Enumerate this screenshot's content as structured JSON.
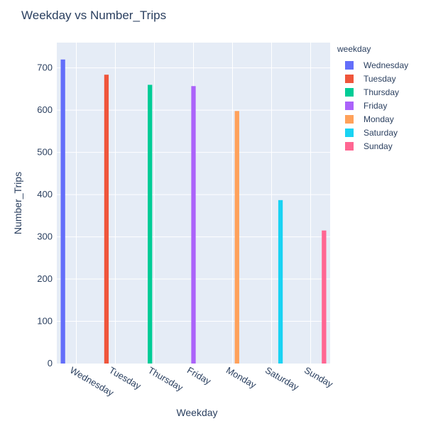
{
  "chart_data": {
    "type": "bar",
    "title": "Weekday vs Number_Trips",
    "xlabel": "Weekday",
    "ylabel": "Number_Trips",
    "categories": [
      "Wednesday",
      "Tuesday",
      "Thursday",
      "Friday",
      "Monday",
      "Saturday",
      "Sunday"
    ],
    "ylim": [
      0,
      760
    ],
    "yticks": [
      0,
      100,
      200,
      300,
      400,
      500,
      600,
      700
    ],
    "grid": true,
    "legend_title": "weekday",
    "legend_position": "right",
    "series": [
      {
        "name": "Wednesday",
        "color": "#636efa",
        "values": [
          720,
          null,
          null,
          null,
          null,
          null,
          null
        ]
      },
      {
        "name": "Tuesday",
        "color": "#ef553b",
        "values": [
          null,
          684,
          null,
          null,
          null,
          null,
          null
        ]
      },
      {
        "name": "Thursday",
        "color": "#00cc96",
        "values": [
          null,
          null,
          660,
          null,
          null,
          null,
          null
        ]
      },
      {
        "name": "Friday",
        "color": "#ab63fa",
        "values": [
          null,
          null,
          null,
          657,
          null,
          null,
          null
        ]
      },
      {
        "name": "Monday",
        "color": "#ffa15a",
        "values": [
          null,
          null,
          null,
          null,
          598,
          null,
          null
        ]
      },
      {
        "name": "Saturday",
        "color": "#19d3f3",
        "values": [
          null,
          null,
          null,
          null,
          null,
          387,
          null
        ]
      },
      {
        "name": "Sunday",
        "color": "#ff6692",
        "values": [
          null,
          null,
          null,
          null,
          null,
          null,
          315
        ]
      }
    ],
    "plot_background": "#e5ecf6"
  }
}
